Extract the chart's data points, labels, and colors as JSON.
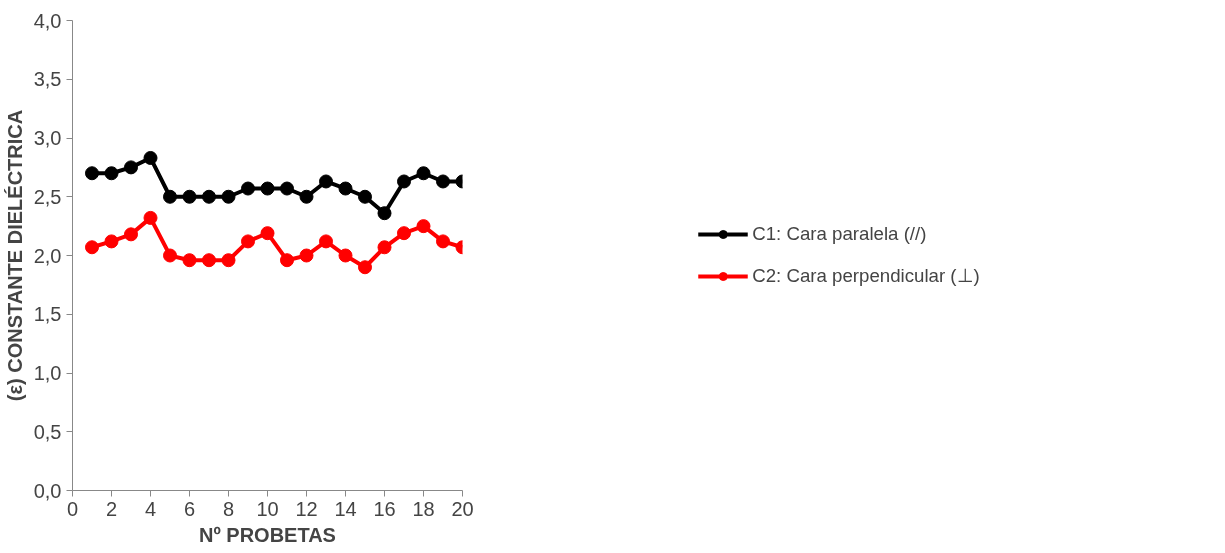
{
  "chart_data": {
    "type": "line",
    "xlabel": "Nº PROBETAS",
    "ylabel": "(ε) CONSTANTE DIELÉCTRICA",
    "x": [
      1,
      2,
      3,
      4,
      5,
      6,
      7,
      8,
      9,
      10,
      11,
      12,
      13,
      14,
      15,
      16,
      17,
      18,
      19,
      20
    ],
    "series": [
      {
        "name": "C1: Cara paralela (//)",
        "color": "#000000",
        "values": [
          2.7,
          2.7,
          2.75,
          2.83,
          2.5,
          2.5,
          2.5,
          2.5,
          2.57,
          2.57,
          2.57,
          2.5,
          2.63,
          2.57,
          2.5,
          2.36,
          2.63,
          2.7,
          2.63,
          2.63
        ]
      },
      {
        "name": "C2: Cara perpendicular (⊥)",
        "color": "#ff0000",
        "values": [
          2.07,
          2.12,
          2.18,
          2.32,
          2.0,
          1.96,
          1.96,
          1.96,
          2.12,
          2.19,
          1.96,
          2.0,
          2.12,
          2.0,
          1.9,
          2.07,
          2.19,
          2.25,
          2.12,
          2.07
        ]
      }
    ],
    "xlim": [
      0,
      20
    ],
    "xticks": [
      0,
      2,
      4,
      6,
      8,
      10,
      12,
      14,
      16,
      18,
      20
    ],
    "ylim": [
      0,
      4
    ],
    "yticks": [
      {
        "value": 0,
        "label": "0,0"
      },
      {
        "value": 0.5,
        "label": "0,5"
      },
      {
        "value": 1,
        "label": "1,0"
      },
      {
        "value": 1.5,
        "label": "1,5"
      },
      {
        "value": 2,
        "label": "2,0"
      },
      {
        "value": 2.5,
        "label": "2,5"
      },
      {
        "value": 3,
        "label": "3,0"
      },
      {
        "value": 3.5,
        "label": "3,5"
      },
      {
        "value": 4,
        "label": "4,0"
      }
    ],
    "grid": false,
    "legend": "right",
    "marker": "circle",
    "line_style": "solid"
  }
}
